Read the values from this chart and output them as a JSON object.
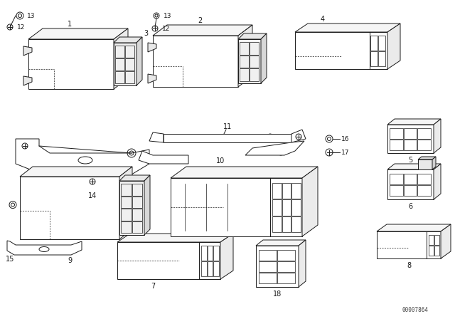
{
  "bg_color": "#ffffff",
  "line_color": "#1a1a1a",
  "fig_width": 6.4,
  "fig_height": 4.48,
  "dpi": 100,
  "watermark": "00007864"
}
